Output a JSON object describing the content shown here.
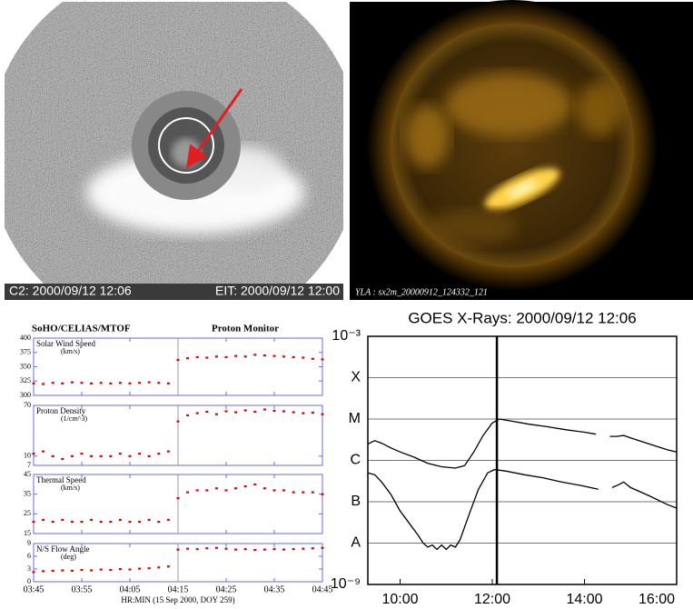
{
  "images": [
    {
      "caption_left": "C2: 2000/09/12 12:06",
      "caption_right": "EIT: 2000/09/12 12:00"
    },
    {
      "caption": "YLA : sx2m_20000912_124332_121"
    }
  ],
  "chart_data": [
    {
      "type": "scatter",
      "title": "SoHO/CELIAS/MTOF",
      "subtitle": "Proton Monitor",
      "xlabel": "HR:MIN (15 Sep 2000, DOY 259)",
      "x": [
        "03:45",
        "03:47",
        "03:49",
        "03:51",
        "03:53",
        "03:55",
        "03:57",
        "03:59",
        "04:01",
        "04:03",
        "04:05",
        "04:07",
        "04:09",
        "04:11",
        "04:13",
        "04:15",
        "04:17",
        "04:19",
        "04:21",
        "04:23",
        "04:25",
        "04:27",
        "04:29",
        "04:31",
        "04:33",
        "04:35",
        "04:37",
        "04:39",
        "04:41",
        "04:43",
        "04:45"
      ],
      "xlim": [
        "03:45",
        "04:45"
      ],
      "xticks": [
        "03:45",
        "03:55",
        "04:05",
        "04:15",
        "04:25",
        "04:35",
        "04:45"
      ],
      "panels": [
        {
          "label": "Solar Wind Speed",
          "unit": "(km/s)",
          "color": "#e00000",
          "log": false,
          "ylim": [
            300,
            400
          ],
          "yticks": [
            300,
            325,
            350,
            375,
            400
          ],
          "values": [
            321,
            320,
            322,
            321,
            323,
            322,
            321,
            322,
            321,
            322,
            321,
            322,
            323,
            322,
            321,
            362,
            365,
            367,
            366,
            368,
            367,
            369,
            368,
            371,
            370,
            369,
            368,
            367,
            366,
            364,
            363
          ]
        },
        {
          "label": "Proton Density",
          "unit": "(1/cm^3)",
          "color": "#e00000",
          "log": true,
          "ylim": [
            7,
            70
          ],
          "yticks": [
            7,
            10,
            70
          ],
          "values": [
            11,
            12,
            10,
            9,
            10,
            11,
            10,
            10,
            10,
            11,
            10,
            11,
            10,
            11,
            12,
            38,
            48,
            52,
            55,
            50,
            56,
            54,
            58,
            55,
            60,
            57,
            56,
            54,
            52,
            53,
            50
          ]
        },
        {
          "label": "Thermal Speed",
          "unit": "(km/s)",
          "color": "#e00000",
          "log": false,
          "ylim": [
            15,
            45
          ],
          "yticks": [
            15,
            25,
            35,
            45
          ],
          "values": [
            21,
            22,
            21,
            22,
            21,
            21,
            22,
            21,
            21,
            22,
            21,
            21,
            22,
            21,
            22,
            33,
            36,
            37,
            37,
            38,
            37,
            38,
            39,
            40,
            38,
            37,
            37,
            36,
            36,
            36,
            35
          ]
        },
        {
          "label": "N/S Flow Angle",
          "unit": "(deg)",
          "color": "#e00000",
          "log": false,
          "ylim": [
            0,
            9
          ],
          "yticks": [
            0,
            3,
            6,
            9
          ],
          "values": [
            2.3,
            2.5,
            2.6,
            2.7,
            2.6,
            2.8,
            2.7,
            2.9,
            2.8,
            3.0,
            2.9,
            3.1,
            3.2,
            3.4,
            3.6,
            7.6,
            7.8,
            7.7,
            7.9,
            8.0,
            7.8,
            7.6,
            7.7,
            7.5,
            7.6,
            7.7,
            7.6,
            7.7,
            7.8,
            7.9,
            8.0
          ]
        }
      ]
    },
    {
      "type": "line",
      "title": "GOES X-Rays: 2000/09/12 12:06",
      "log": true,
      "grid": true,
      "xlim": [
        9.3,
        16
      ],
      "ylim": [
        1e-09,
        0.001
      ],
      "marker_x": 12.1,
      "xticks": [
        {
          "value": 10,
          "label": "10:00"
        },
        {
          "value": 12,
          "label": "12:00"
        },
        {
          "value": 14,
          "label": "14:00"
        },
        {
          "value": 16,
          "label": "16:00"
        }
      ],
      "yticks": [
        {
          "value": 0.001,
          "label": "10⁻³"
        },
        {
          "value": 0.0001,
          "label": "X"
        },
        {
          "value": 1e-05,
          "label": "M"
        },
        {
          "value": 1e-06,
          "label": "C"
        },
        {
          "value": 1e-07,
          "label": "B"
        },
        {
          "value": 1e-08,
          "label": "A"
        },
        {
          "value": 1e-09,
          "label": "10⁻⁹"
        }
      ],
      "series": [
        {
          "color": "#000000",
          "x": [
            9.3,
            9.45,
            9.6,
            9.8,
            10.0,
            10.3,
            10.6,
            10.9,
            11.2,
            11.4,
            11.6,
            11.8,
            12.0,
            12.15,
            12.4,
            12.8,
            13.2,
            13.6,
            14.0,
            14.25,
            14.4,
            14.55,
            14.7,
            14.85,
            15.0,
            15.4,
            15.8,
            16.0
          ],
          "values": [
            2.5e-06,
            3e-06,
            2.6e-06,
            2e-06,
            1.6e-06,
            1.2e-06,
            8.5e-07,
            7e-07,
            6.5e-07,
            7.5e-07,
            1.6e-06,
            4e-06,
            8e-06,
            1e-05,
            9e-06,
            7.5e-06,
            6.5e-06,
            5.5e-06,
            4.8e-06,
            4.3e-06,
            null,
            3.8e-06,
            3.8e-06,
            4e-06,
            3.5e-06,
            2.5e-06,
            1.8e-06,
            1.6e-06
          ]
        },
        {
          "color": "#000000",
          "x": [
            9.3,
            9.45,
            9.6,
            9.8,
            10.0,
            10.2,
            10.4,
            10.5,
            10.6,
            10.7,
            10.8,
            10.9,
            11.0,
            11.1,
            11.2,
            11.3,
            11.5,
            11.7,
            11.9,
            12.05,
            12.3,
            12.7,
            13.1,
            13.5,
            13.9,
            14.3,
            14.45,
            14.6,
            14.75,
            14.85,
            15.0,
            15.4,
            15.8,
            16.0
          ],
          "values": [
            5e-07,
            4.5e-07,
            3e-07,
            1.5e-07,
            6e-08,
            3e-08,
            1.5e-08,
            1e-08,
            8e-09,
            9e-09,
            7e-09,
            9e-09,
            7e-09,
            9e-09,
            8e-09,
            1.2e-08,
            5e-08,
            2e-07,
            5e-07,
            6e-07,
            5.5e-07,
            4.5e-07,
            3.8e-07,
            3e-07,
            2.5e-07,
            2e-07,
            null,
            2.2e-07,
            2.6e-07,
            3e-07,
            2.2e-07,
            1.4e-07,
            8.5e-08,
            7e-08
          ]
        }
      ]
    }
  ]
}
